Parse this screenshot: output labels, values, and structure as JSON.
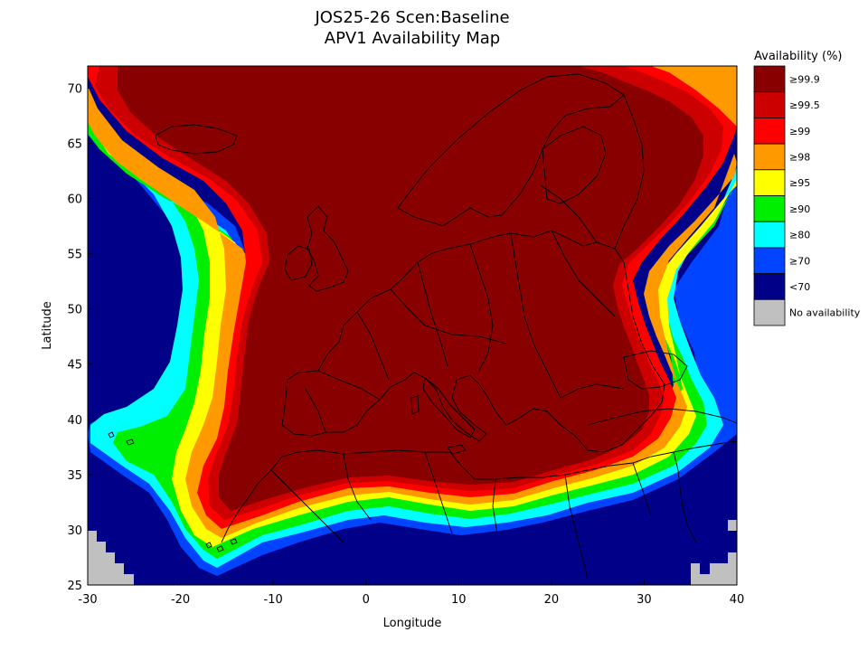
{
  "title_line1": "JOS25-26 Scen:Baseline",
  "title_line2": "APV1 Availability Map",
  "xlabel": "Longitude",
  "ylabel": "Latitude",
  "x_ticks": [
    "-30",
    "-20",
    "-10",
    "0",
    "10",
    "20",
    "30",
    "40"
  ],
  "y_ticks": [
    "70",
    "65",
    "60",
    "55",
    "50",
    "45",
    "40",
    "35",
    "30",
    "25"
  ],
  "legend": {
    "title": "Availability (%)",
    "items": [
      {
        "label": "≥99.9",
        "color": "#880000"
      },
      {
        "label": "≥99.5",
        "color": "#cc0000"
      },
      {
        "label": "≥99",
        "color": "#ff0000"
      },
      {
        "label": "≥98",
        "color": "#ff9900"
      },
      {
        "label": "≥95",
        "color": "#ffff00"
      },
      {
        "label": "≥90",
        "color": "#00ee00"
      },
      {
        "label": "≥80",
        "color": "#00ffff"
      },
      {
        "label": "≥70",
        "color": "#0044ff"
      },
      {
        "label": "<70",
        "color": "#000088"
      },
      {
        "label": "No availability",
        "color": "#c0c0c0"
      }
    ]
  },
  "chart_data": {
    "type": "heatmap",
    "title": "JOS25-26 Scen:Baseline APV1 Availability Map",
    "xlabel": "Longitude",
    "ylabel": "Latitude",
    "xlim": [
      -30,
      40
    ],
    "ylim": [
      25,
      72
    ],
    "description_levels": [
      "≥99.9",
      "≥99.5",
      "≥99",
      "≥98",
      "≥95",
      "≥90",
      "≥80",
      "≥70",
      "<70",
      "No availability"
    ],
    "core_region": {
      "name": "≥99.9 core",
      "lon_range": [
        -15,
        28
      ],
      "lat_range": [
        31,
        72
      ]
    }
  }
}
